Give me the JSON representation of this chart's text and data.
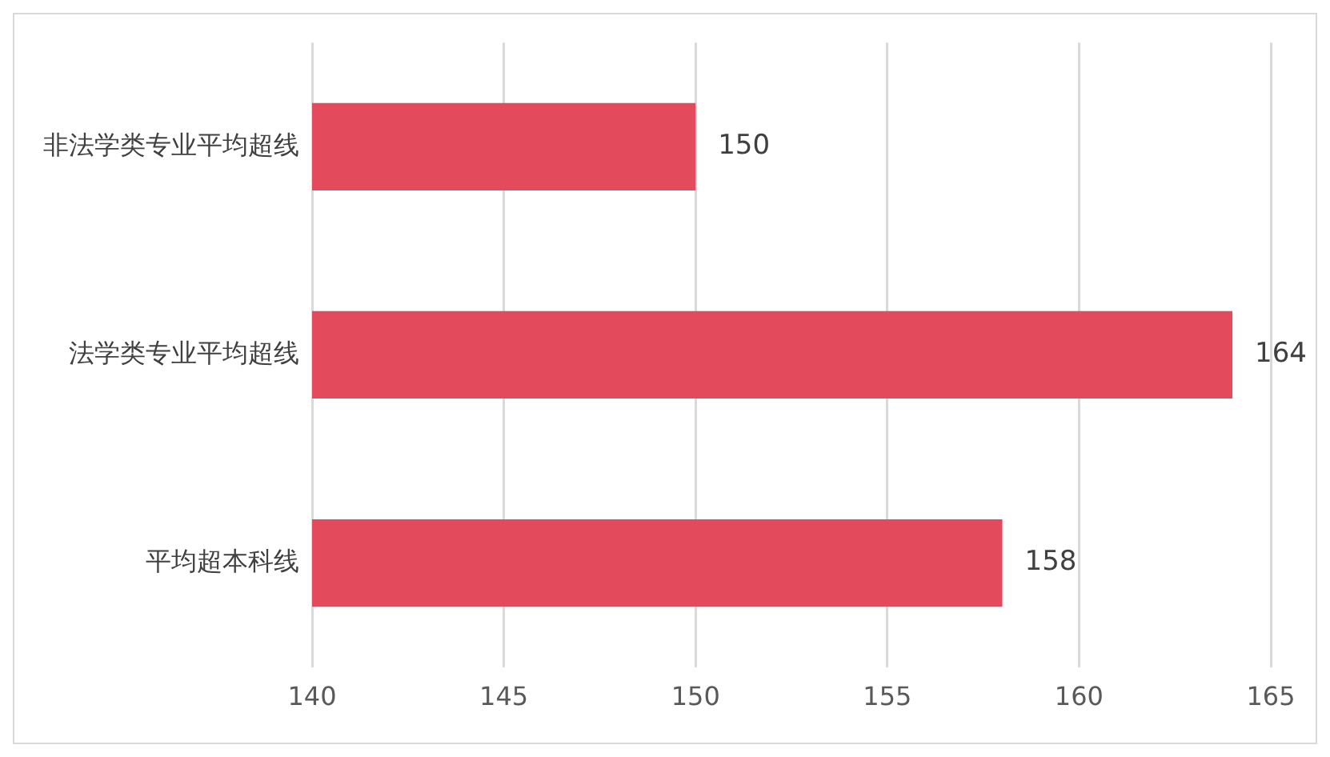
{
  "chart_data": {
    "type": "bar",
    "orientation": "horizontal",
    "categories": [
      "非法学类专业平均超线",
      "法学类专业平均超线",
      "平均超本科线"
    ],
    "values": [
      150,
      164,
      158
    ],
    "color": "#e34a5c",
    "xlim": [
      140,
      165
    ],
    "xticks": [
      140,
      145,
      150,
      155,
      160,
      165
    ],
    "grid": "x",
    "data_labels": true,
    "legend": false
  }
}
